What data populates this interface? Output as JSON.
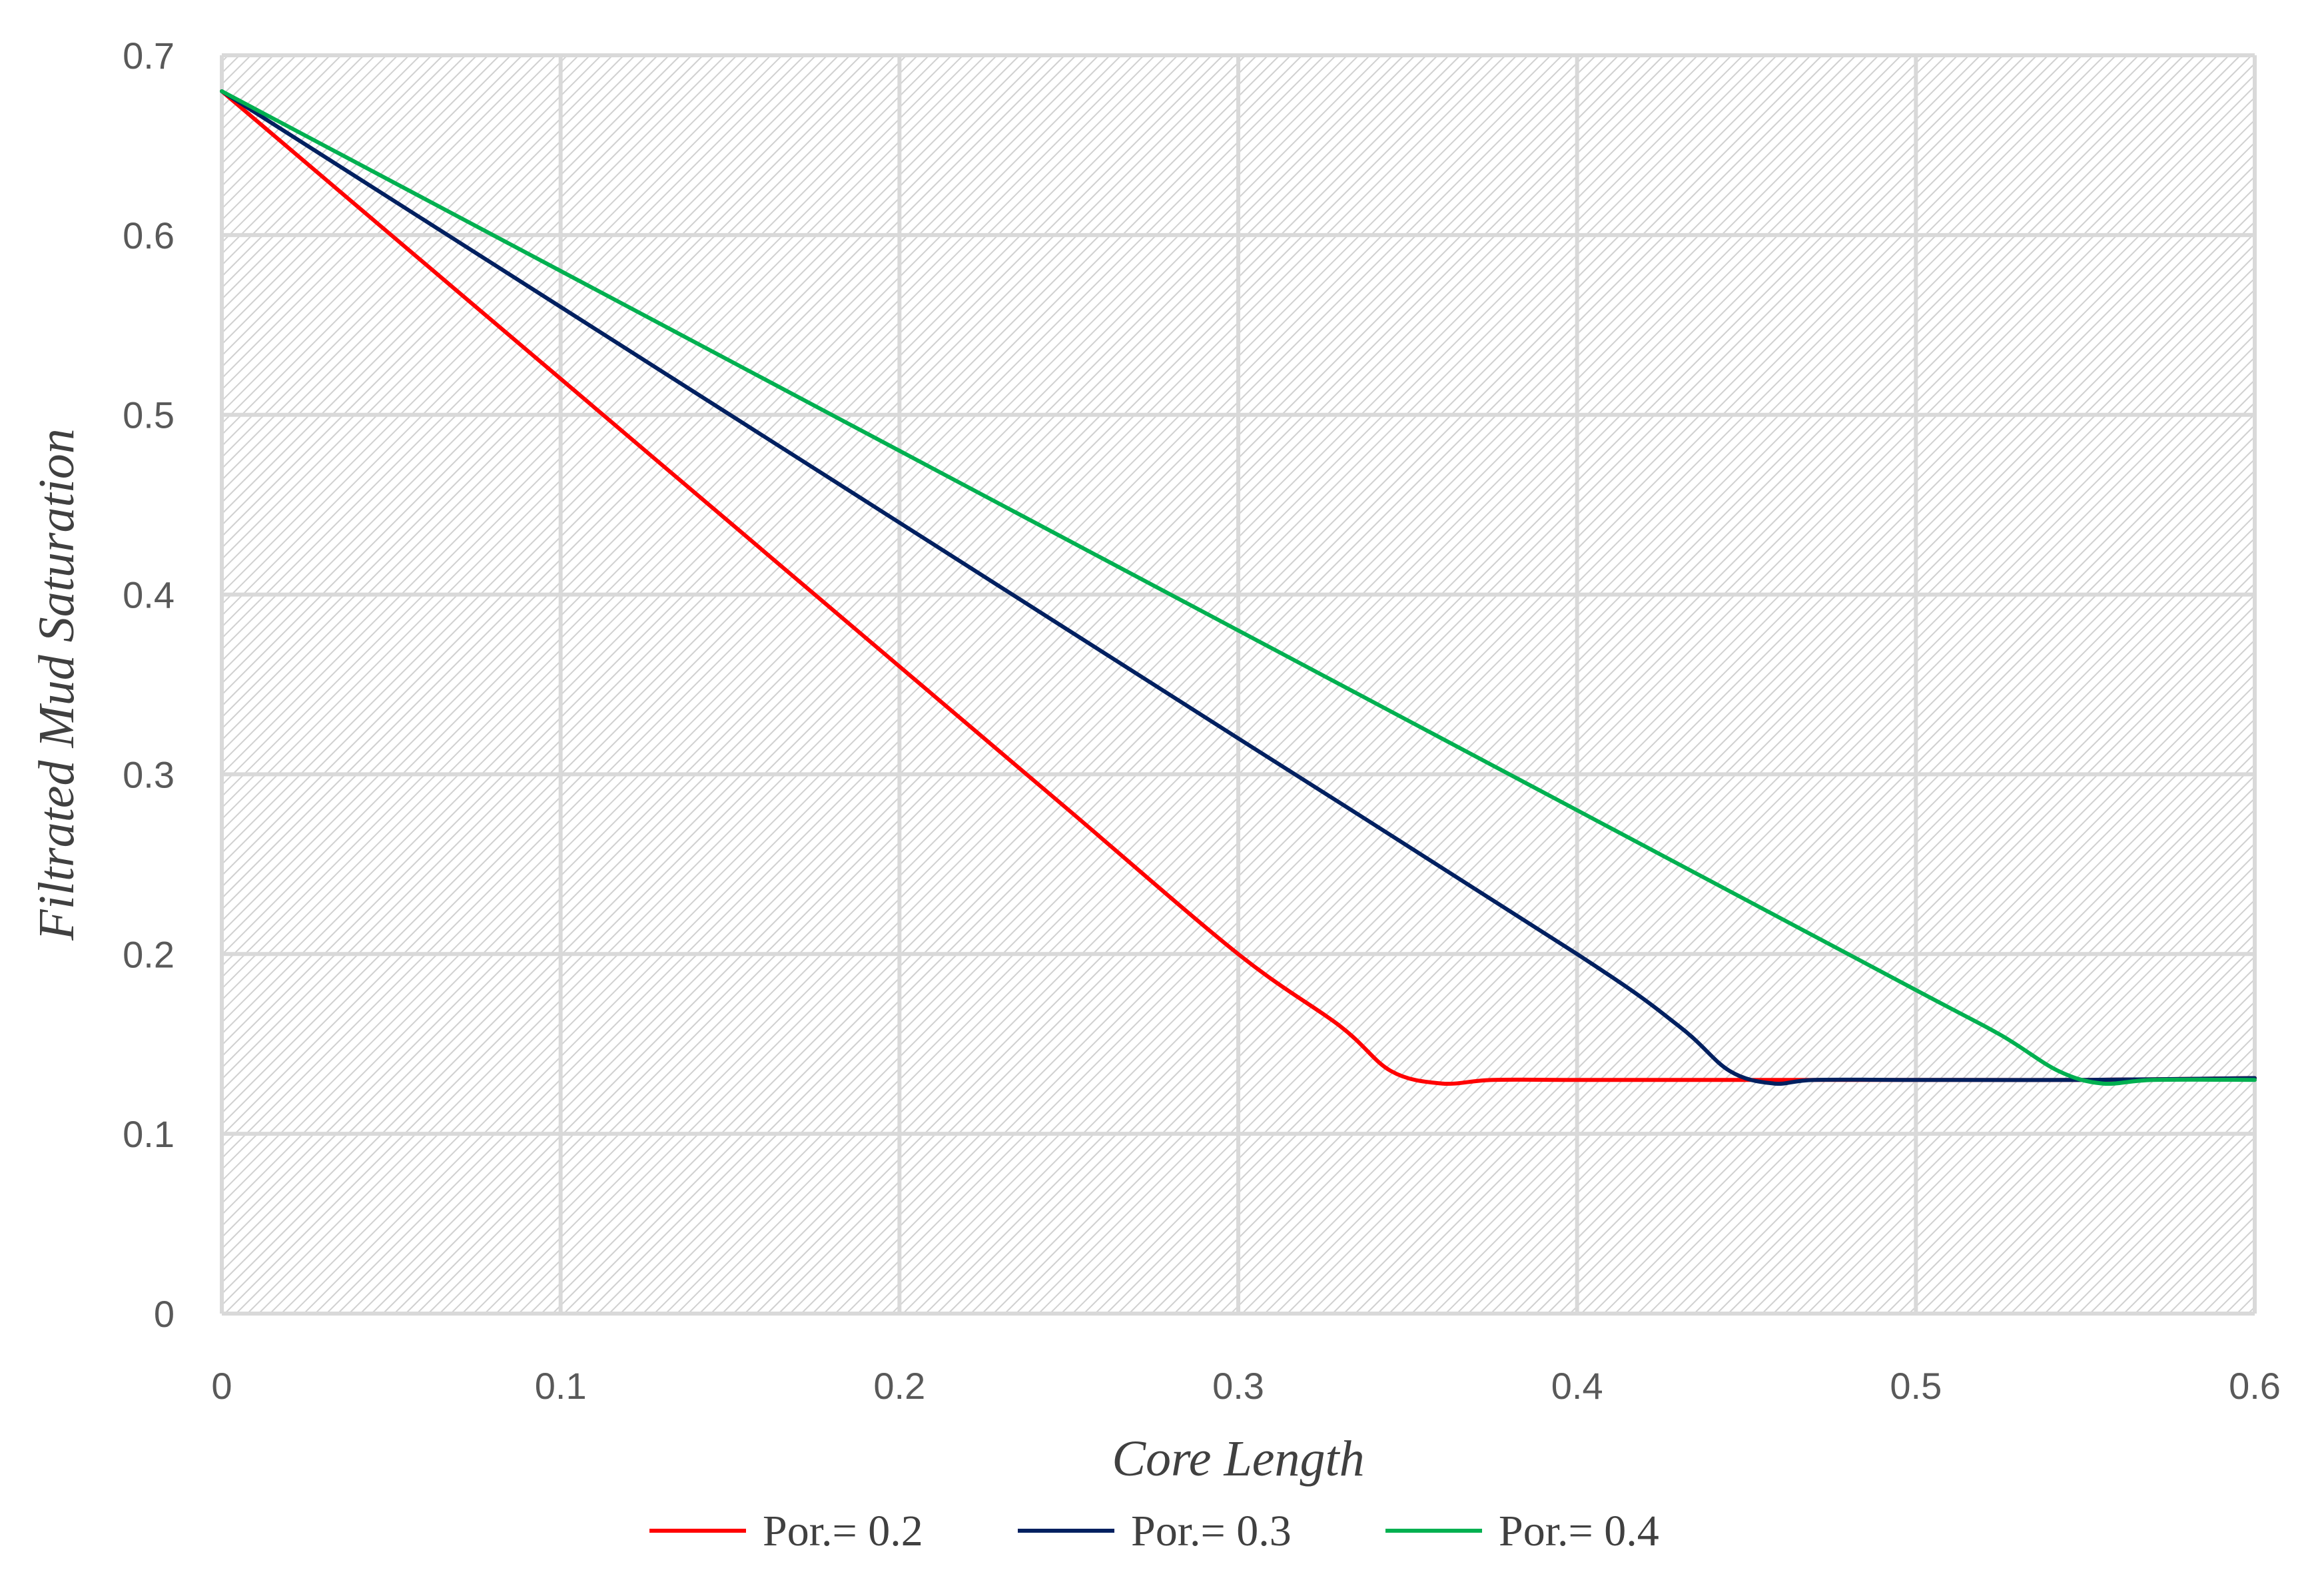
{
  "chart_data": {
    "type": "line",
    "title": "",
    "xlabel": "Core Length",
    "ylabel": "Filtrated Mud Saturation",
    "xlim": [
      0,
      0.6
    ],
    "ylim": [
      0,
      0.7
    ],
    "xticks": [
      0,
      0.1,
      0.2,
      0.3,
      0.4,
      0.5,
      0.6
    ],
    "xtick_labels": [
      "0",
      "0.1",
      "0.2",
      "0.3",
      "0.4",
      "0.5",
      "0.6"
    ],
    "yticks": [
      0,
      0.1,
      0.2,
      0.3,
      0.4,
      0.5,
      0.6,
      0.7
    ],
    "ytick_labels": [
      "0",
      "0.1",
      "0.2",
      "0.3",
      "0.4",
      "0.5",
      "0.6",
      "0.7"
    ],
    "grid": true,
    "legend_position": "bottom",
    "series": [
      {
        "name": "Por.= 0.2",
        "color": "#ff0000",
        "x": [
          0,
          0.05,
          0.1,
          0.15,
          0.2,
          0.25,
          0.3,
          0.33,
          0.345,
          0.36,
          0.375,
          0.4,
          0.45,
          0.5,
          0.55,
          0.6
        ],
        "y": [
          0.68,
          0.6,
          0.52,
          0.44,
          0.36,
          0.28,
          0.2,
          0.16,
          0.135,
          0.128,
          0.13,
          0.13,
          0.13,
          0.13,
          0.13,
          0.131
        ]
      },
      {
        "name": "Por.= 0.3",
        "color": "#002060",
        "x": [
          0,
          0.1,
          0.2,
          0.3,
          0.4,
          0.43,
          0.445,
          0.458,
          0.47,
          0.5,
          0.55,
          0.6
        ],
        "y": [
          0.68,
          0.56,
          0.44,
          0.32,
          0.2,
          0.16,
          0.135,
          0.128,
          0.13,
          0.13,
          0.13,
          0.131
        ]
      },
      {
        "name": "Por.= 0.4",
        "color": "#00b050",
        "x": [
          0,
          0.1,
          0.2,
          0.3,
          0.4,
          0.5,
          0.525,
          0.542,
          0.555,
          0.57,
          0.6
        ],
        "y": [
          0.68,
          0.58,
          0.48,
          0.38,
          0.28,
          0.18,
          0.155,
          0.135,
          0.128,
          0.13,
          0.13
        ]
      }
    ]
  }
}
